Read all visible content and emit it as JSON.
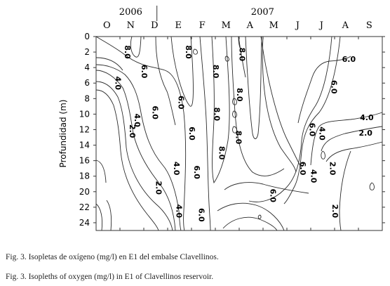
{
  "chart_data": {
    "type": "contour",
    "ylabel": "Profundidad (m)",
    "years": [
      {
        "label": "2006",
        "months_from": 0,
        "months_to": 3
      },
      {
        "label": "2007",
        "months_from": 3,
        "months_to": 12
      }
    ],
    "months": [
      "O",
      "N",
      "D",
      "E",
      "F",
      "M",
      "A",
      "M",
      "J",
      "J",
      "A",
      "S"
    ],
    "y_ticks": [
      0,
      2,
      4,
      6,
      8,
      10,
      12,
      14,
      16,
      18,
      20,
      22,
      24
    ],
    "ylim": [
      0,
      25
    ],
    "y_inverted": true,
    "isopleth_levels": [
      2.0,
      4.0,
      6.0,
      8.0
    ],
    "contour_labels": [
      {
        "text": "8.0",
        "month_pos": 1.3,
        "depth": 2.0
      },
      {
        "text": "6.0",
        "month_pos": 2.0,
        "depth": 4.5
      },
      {
        "text": "4.0",
        "month_pos": 0.9,
        "depth": 6.0
      },
      {
        "text": "6.0",
        "month_pos": 2.45,
        "depth": 9.8
      },
      {
        "text": "6.0",
        "month_pos": 3.55,
        "depth": 8.5
      },
      {
        "text": "4.0",
        "month_pos": 1.7,
        "depth": 10.8
      },
      {
        "text": "2.0",
        "month_pos": 1.5,
        "depth": 12.2
      },
      {
        "text": "8.0",
        "month_pos": 3.85,
        "depth": 2.0
      },
      {
        "text": "8.0",
        "month_pos": 5.0,
        "depth": 4.5
      },
      {
        "text": "8.0",
        "month_pos": 6.1,
        "depth": 2.3
      },
      {
        "text": "8.0",
        "month_pos": 6.0,
        "depth": 7.5
      },
      {
        "text": "8.0",
        "month_pos": 5.05,
        "depth": 10.0
      },
      {
        "text": "8.0",
        "month_pos": 5.95,
        "depth": 13.0
      },
      {
        "text": "8.0",
        "month_pos": 5.25,
        "depth": 15.0
      },
      {
        "text": "6.0",
        "month_pos": 4.0,
        "depth": 12.5
      },
      {
        "text": "6.0",
        "month_pos": 4.2,
        "depth": 17.5
      },
      {
        "text": "4.0",
        "month_pos": 3.35,
        "depth": 17.0
      },
      {
        "text": "2.0",
        "month_pos": 2.6,
        "depth": 19.5
      },
      {
        "text": "4.0",
        "month_pos": 3.45,
        "depth": 22.5
      },
      {
        "text": "6.0",
        "month_pos": 4.4,
        "depth": 23.0
      },
      {
        "text": "6.0",
        "month_pos": 7.4,
        "depth": 20.5
      },
      {
        "text": "6.0",
        "month_pos": 10.6,
        "depth": 3.0
      },
      {
        "text": "6.0",
        "month_pos": 9.95,
        "depth": 6.5
      },
      {
        "text": "6.0",
        "month_pos": 9.05,
        "depth": 12.0
      },
      {
        "text": "4.0",
        "month_pos": 9.45,
        "depth": 12.5
      },
      {
        "text": "6.0",
        "month_pos": 8.65,
        "depth": 17.0
      },
      {
        "text": "4.0",
        "month_pos": 9.1,
        "depth": 18.0
      },
      {
        "text": "4.0",
        "month_pos": 11.35,
        "depth": 10.5
      },
      {
        "text": "2.0",
        "month_pos": 11.3,
        "depth": 12.5
      },
      {
        "text": "2.0",
        "month_pos": 9.9,
        "depth": 17.0
      },
      {
        "text": "2.0",
        "month_pos": 10.0,
        "depth": 22.5
      }
    ]
  },
  "captions": {
    "es": "Fig. 3. Isopletas de oxígeno (mg/l) en E1 del embalse Clavellinos.",
    "en": "Fig. 3. Isopleths of oxygen (mg/l) in E1 of Clavellinos reservoir."
  }
}
